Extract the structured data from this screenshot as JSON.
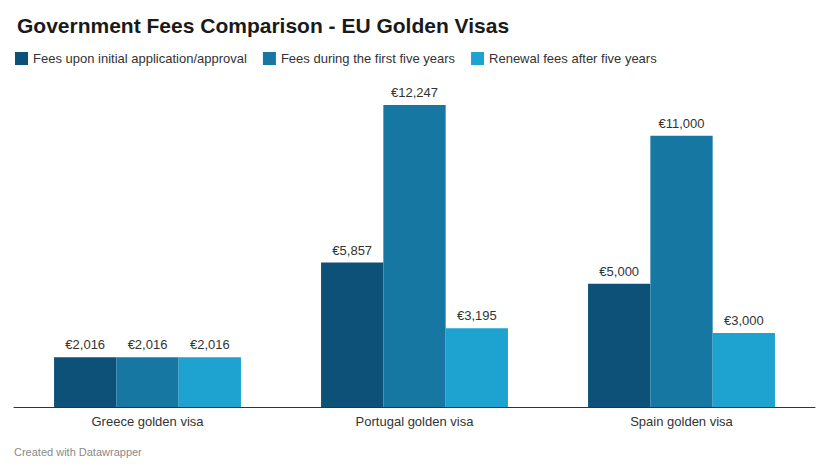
{
  "chart_data": {
    "type": "bar",
    "title": "Government Fees Comparison - EU Golden Visas",
    "categories": [
      "Greece golden visa",
      "Portugal golden visa",
      "Spain golden visa"
    ],
    "series": [
      {
        "name": "Fees upon initial application/approval",
        "color": "#0d5179",
        "values": [
          2016,
          5857,
          5000
        ],
        "value_labels": [
          "€2,016",
          "€5,857",
          "€5,000"
        ]
      },
      {
        "name": "Fees during the first five years",
        "color": "#1677a3",
        "values": [
          2016,
          12247,
          11000
        ],
        "value_labels": [
          "€2,016",
          "€12,247",
          "€11,000"
        ]
      },
      {
        "name": "Renewal fees after five years",
        "color": "#1ea3d0",
        "values": [
          2016,
          3195,
          3000
        ],
        "value_labels": [
          "€2,016",
          "€3,195",
          "€3,000"
        ]
      }
    ],
    "ylim": [
      0,
      12247
    ],
    "grid": false,
    "legend": "top-left",
    "data_labels": true,
    "tick_labels": "x",
    "annotations": [
      "Created with Datawrapper"
    ]
  }
}
